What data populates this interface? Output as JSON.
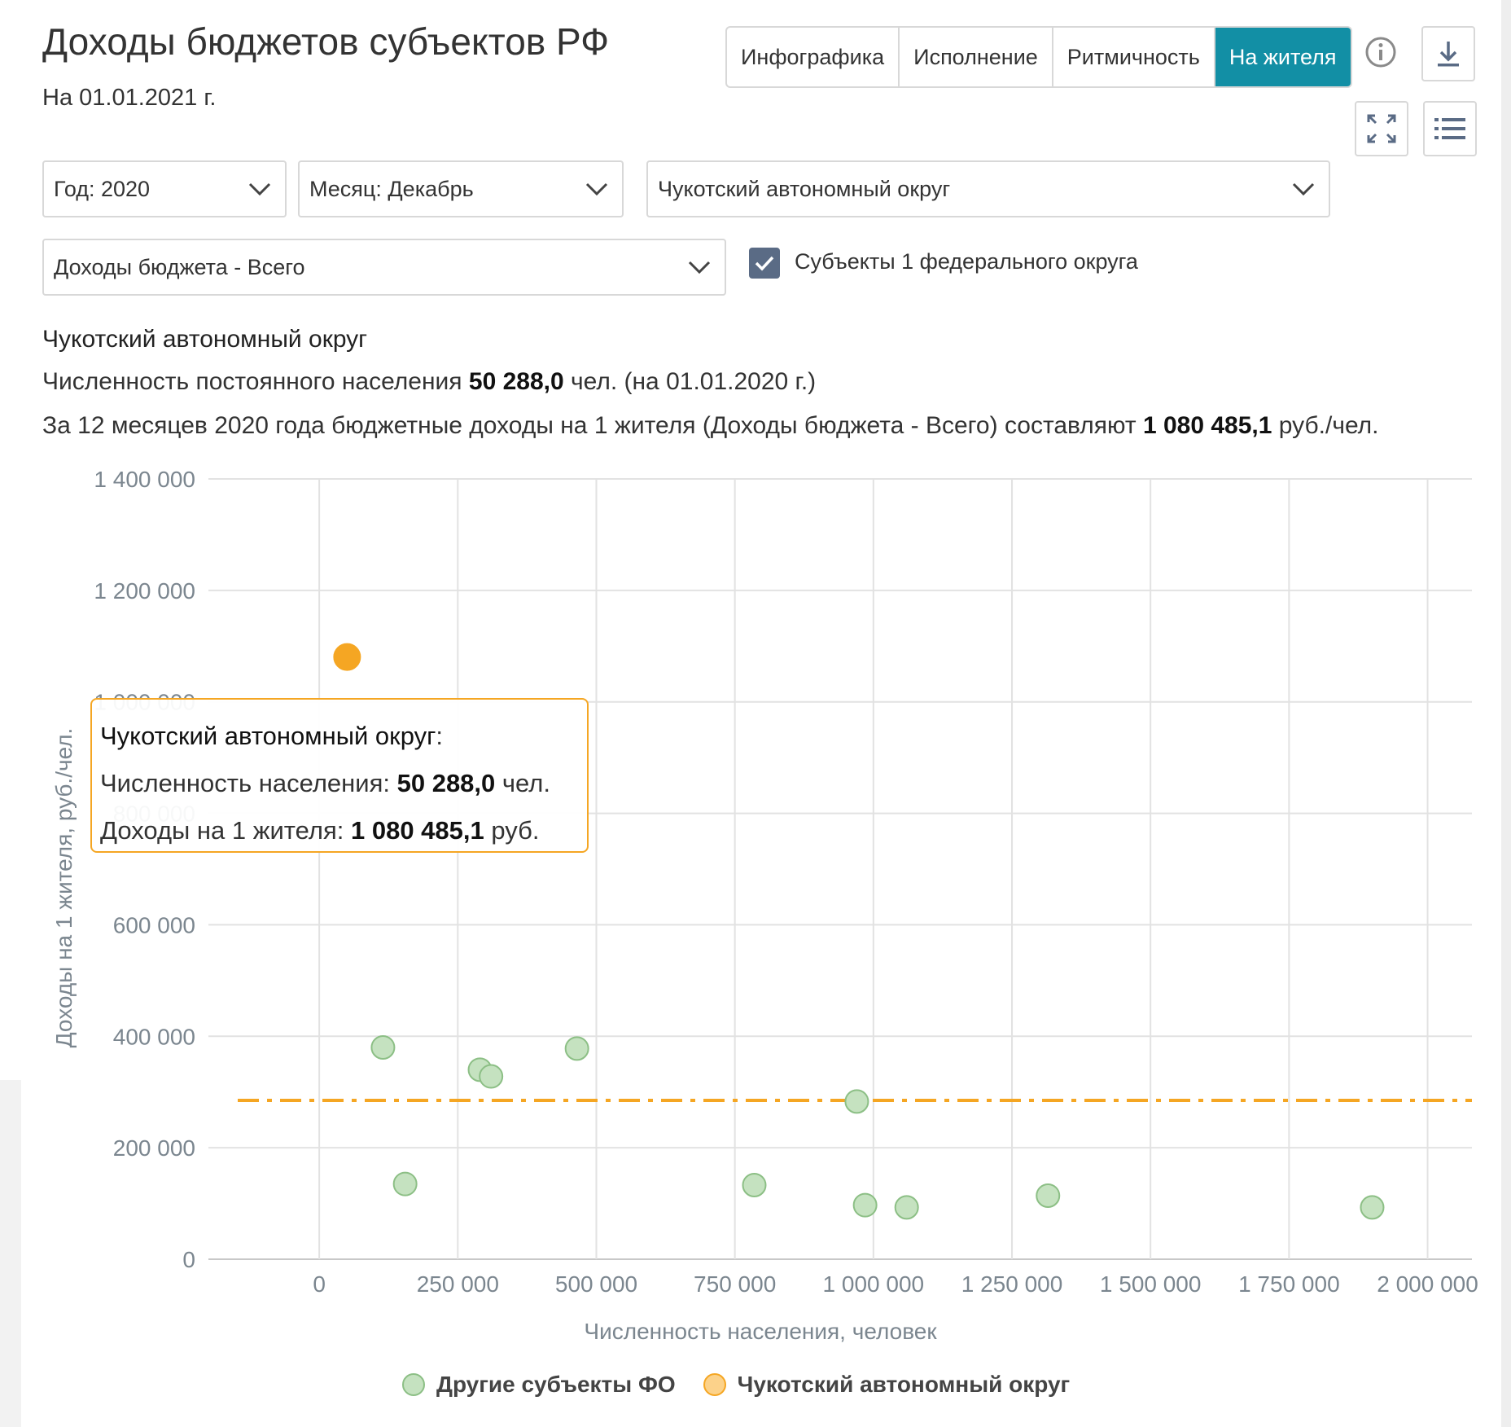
{
  "header": {
    "title": "Доходы бюджетов субъектов РФ",
    "date": "На 01.01.2021 г."
  },
  "tabs": [
    {
      "label": "Инфографика",
      "active": false
    },
    {
      "label": "Исполнение",
      "active": false
    },
    {
      "label": "Ритмичность",
      "active": false
    },
    {
      "label": "На жителя",
      "active": true
    }
  ],
  "icons": {
    "info": "info-icon",
    "download": "download-icon",
    "fullscreen": "fullscreen-icon",
    "menu": "list-icon"
  },
  "filters": {
    "year": "Год: 2020",
    "month": "Месяц: Декабрь",
    "region": "Чукотский автономный округ",
    "indicator": "Доходы бюджета - Всего",
    "checkbox_label": "Субъекты 1 федерального округа",
    "checkbox_checked": true
  },
  "summary": {
    "region_name": "Чукотский автономный округ",
    "population_prefix": "Численность постоянного населения ",
    "population_value": "50 288,0",
    "population_suffix": " чел. (на 01.01.2020 г.)",
    "income_prefix": "За 12 месяцев 2020 года бюджетные доходы на 1 жителя (Доходы бюджета - Всего) составляют ",
    "income_value": "1 080 485,1",
    "income_suffix": " руб./чел."
  },
  "tooltip": {
    "name": "Чукотский автономный округ",
    "name_suffix": ":",
    "pop_label": "Численность населения: ",
    "pop_value": "50 288,0",
    "pop_unit": " чел.",
    "inc_label": "Доходы на 1 жителя: ",
    "inc_value": "1 080 485,1",
    "inc_unit": " руб."
  },
  "colors": {
    "accent": "#128fa5",
    "highlight": "#f5a623",
    "other_fill": "#c5e2c0",
    "other_stroke": "#8cbf85"
  },
  "chart_data": {
    "type": "scatter",
    "xlabel": "Численность населения, человек",
    "ylabel": "Доходы на 1 жителя, руб./чел.",
    "xlim": [
      -200000,
      2080000
    ],
    "ylim": [
      0,
      1400000
    ],
    "x_ticks": [
      0,
      250000,
      500000,
      750000,
      1000000,
      1250000,
      1500000,
      1750000,
      2000000
    ],
    "x_tick_labels": [
      "0",
      "250 000",
      "500 000",
      "750 000",
      "1 000 000",
      "1 250 000",
      "1 500 000",
      "1 750 000",
      "2 000 000"
    ],
    "y_ticks": [
      0,
      200000,
      400000,
      600000,
      800000,
      1000000,
      1200000,
      1400000
    ],
    "y_tick_labels": [
      "0",
      "200 000",
      "400 000",
      "600 000",
      "800 000",
      "1 000 000",
      "1 200 000",
      "1 400 000"
    ],
    "reference_line": {
      "y": 285000,
      "style": "dash-dot"
    },
    "legend_position": "bottom",
    "grid": true,
    "series": [
      {
        "name": "Другие субъекты ФО",
        "points": [
          {
            "x": 115000,
            "y": 380000
          },
          {
            "x": 155000,
            "y": 135000
          },
          {
            "x": 290000,
            "y": 340000
          },
          {
            "x": 310000,
            "y": 328000
          },
          {
            "x": 465000,
            "y": 378000
          },
          {
            "x": 785000,
            "y": 133000
          },
          {
            "x": 970000,
            "y": 283000
          },
          {
            "x": 985000,
            "y": 97000
          },
          {
            "x": 1060000,
            "y": 93000
          },
          {
            "x": 1315000,
            "y": 114000
          },
          {
            "x": 1900000,
            "y": 93000
          }
        ]
      },
      {
        "name": "Чукотский автономный округ",
        "points": [
          {
            "x": 50288,
            "y": 1080485.1
          }
        ]
      }
    ]
  }
}
